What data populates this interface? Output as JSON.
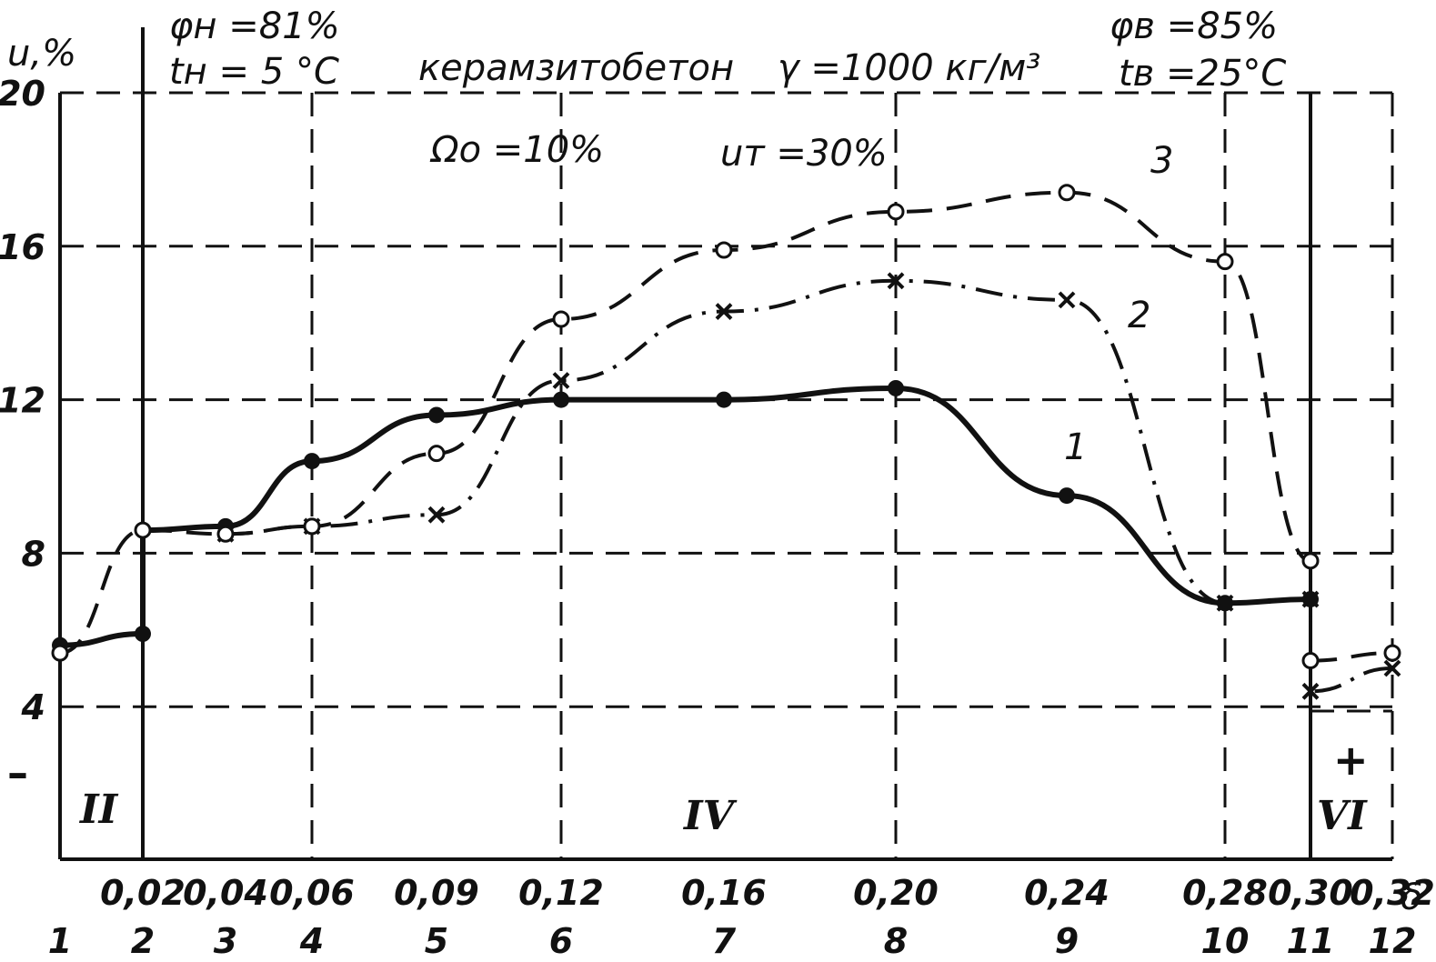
{
  "chart_data": {
    "type": "line",
    "title": "керамзитобетон",
    "density_note": "γ =1000 кг/м³",
    "annotations": {
      "phi_n": "φн =81%",
      "t_n": "tн = 5  °C",
      "phi_v": "φв =85%",
      "t_v": "tв =25°C",
      "omega0": "Ωо =10%",
      "u_m": "uт  =30%"
    },
    "ylabel": "u,%",
    "xlabel": "δ",
    "ylim": [
      0,
      20
    ],
    "y_ticks": [
      "20",
      "16",
      "12",
      "8",
      "4"
    ],
    "y_tick_values": [
      20,
      16,
      12,
      8,
      4
    ],
    "minus_sign": "–",
    "plus_sign": "+",
    "zones": [
      "II",
      "IV",
      "VI"
    ],
    "x_values": [
      0,
      0.02,
      0.04,
      0.06,
      0.09,
      0.12,
      0.16,
      0.2,
      0.24,
      0.28,
      0.3,
      0.32
    ],
    "x_tick_labels": [
      "",
      "0,02",
      "0,04",
      "0,06",
      "0,09",
      "0,12",
      "0,16",
      "0,20",
      "0,24",
      "0,28",
      "0,30",
      "0,32"
    ],
    "point_numbers": [
      "1",
      "2",
      "3",
      "4",
      "5",
      "6",
      "7",
      "8",
      "9",
      "10",
      "11",
      "12"
    ],
    "series": [
      {
        "name": "1",
        "style": "solid",
        "marker": "dot",
        "points": [
          {
            "x": 0,
            "y": 5.6
          },
          {
            "x": 0.02,
            "y": 5.9
          },
          {
            "x": 0.02,
            "y": 8.6
          },
          {
            "x": 0.04,
            "y": 8.7
          },
          {
            "x": 0.06,
            "y": 10.4
          },
          {
            "x": 0.09,
            "y": 11.6
          },
          {
            "x": 0.12,
            "y": 12.0
          },
          {
            "x": 0.16,
            "y": 12.0
          },
          {
            "x": 0.2,
            "y": 12.3
          },
          {
            "x": 0.24,
            "y": 9.5
          },
          {
            "x": 0.28,
            "y": 6.7
          },
          {
            "x": 0.3,
            "y": 6.8
          }
        ]
      },
      {
        "name": "2",
        "style": "dash-dot",
        "marker": "cross",
        "points": [
          {
            "x": 0.04,
            "y": 8.5
          },
          {
            "x": 0.06,
            "y": 8.7
          },
          {
            "x": 0.09,
            "y": 9.0
          },
          {
            "x": 0.12,
            "y": 12.5
          },
          {
            "x": 0.16,
            "y": 14.3
          },
          {
            "x": 0.2,
            "y": 15.1
          },
          {
            "x": 0.24,
            "y": 14.6
          },
          {
            "x": 0.28,
            "y": 6.7
          },
          {
            "x": 0.3,
            "y": 6.8
          },
          {
            "x": 0.3,
            "y": 4.4
          },
          {
            "x": 0.32,
            "y": 5.0
          }
        ]
      },
      {
        "name": "3",
        "style": "dashed",
        "marker": "circle",
        "points": [
          {
            "x": 0,
            "y": 5.4
          },
          {
            "x": 0.02,
            "y": 8.6
          },
          {
            "x": 0.04,
            "y": 8.5
          },
          {
            "x": 0.06,
            "y": 8.7
          },
          {
            "x": 0.09,
            "y": 10.6
          },
          {
            "x": 0.12,
            "y": 14.1
          },
          {
            "x": 0.16,
            "y": 15.9
          },
          {
            "x": 0.2,
            "y": 16.9
          },
          {
            "x": 0.24,
            "y": 17.4
          },
          {
            "x": 0.28,
            "y": 15.6
          },
          {
            "x": 0.3,
            "y": 7.8
          },
          {
            "x": 0.3,
            "y": 5.2
          },
          {
            "x": 0.32,
            "y": 5.4
          }
        ]
      }
    ]
  }
}
